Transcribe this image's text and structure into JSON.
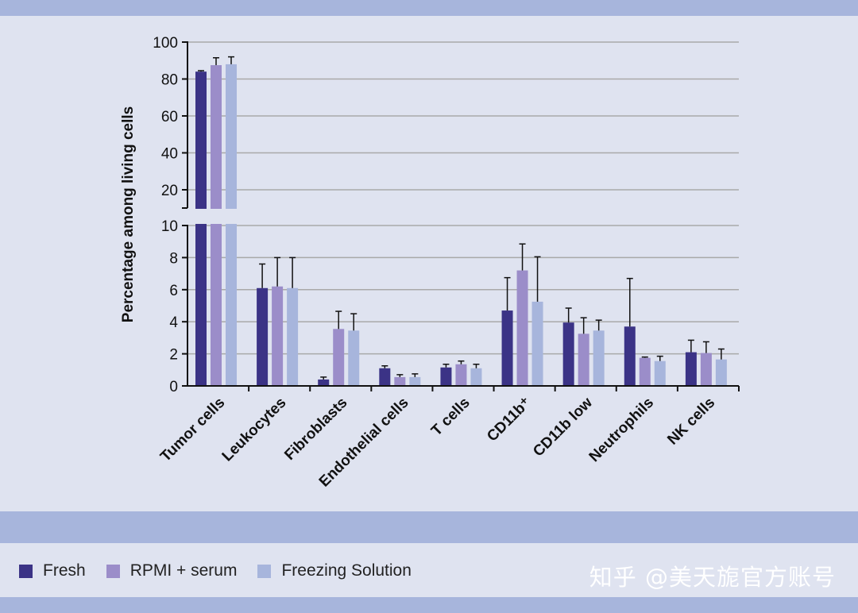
{
  "chart_data": {
    "type": "bar",
    "ylabel": "Percentage among living cells",
    "xlabel": "",
    "title": "",
    "categories": [
      "Tumor cells",
      "Leukocytes",
      "Fibroblasts",
      "Endothelial cells",
      "T cells",
      "CD11b⁺",
      "CD11b low",
      "Neutrophils",
      "NK cells"
    ],
    "series": [
      {
        "name": "Fresh",
        "color": "#3b3386",
        "values": [
          84,
          6.1,
          0.4,
          1.1,
          1.15,
          4.7,
          3.95,
          3.7,
          2.1
        ],
        "errors": [
          0.5,
          1.5,
          0.15,
          0.15,
          0.2,
          2.05,
          0.9,
          3.0,
          0.75
        ]
      },
      {
        "name": "RPMI + serum",
        "color": "#9b8dc9",
        "values": [
          87.5,
          6.2,
          3.55,
          0.55,
          1.35,
          7.2,
          3.25,
          1.75,
          2.05
        ],
        "errors": [
          4,
          1.8,
          1.1,
          0.15,
          0.2,
          1.65,
          1.0,
          0.05,
          0.7
        ]
      },
      {
        "name": "Freezing Solution",
        "color": "#a7b5dc",
        "values": [
          88,
          6.1,
          3.45,
          0.55,
          1.1,
          5.25,
          3.45,
          1.55,
          1.65
        ],
        "errors": [
          4,
          1.9,
          1.05,
          0.2,
          0.25,
          2.8,
          0.65,
          0.3,
          0.65
        ]
      }
    ],
    "y_axis_lower": {
      "range": [
        0,
        10
      ],
      "ticks": [
        0,
        2,
        4,
        6,
        8,
        10
      ]
    },
    "y_axis_upper": {
      "range": [
        10,
        100
      ],
      "ticks": [
        20,
        40,
        60,
        80,
        100
      ]
    },
    "broken_axis": true,
    "grid": true,
    "legend_position": "bottom-left"
  },
  "watermark": "知乎 @美天旎官方账号"
}
